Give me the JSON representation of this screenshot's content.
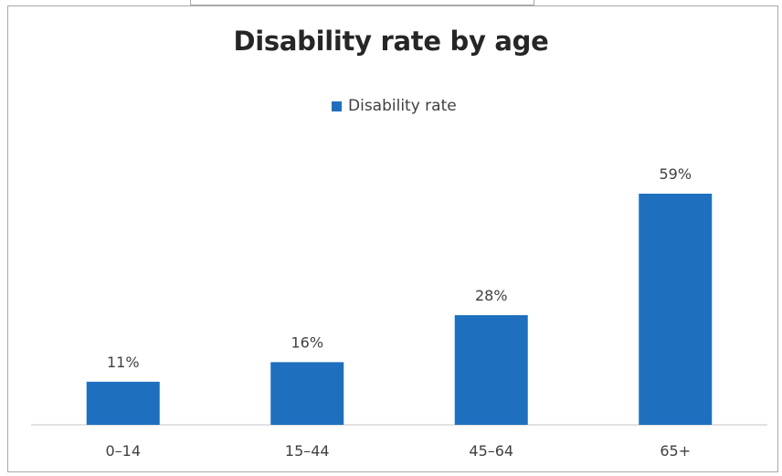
{
  "chart_data": {
    "type": "bar",
    "title": "Disability rate by age",
    "categories": [
      "0–14",
      "15–44",
      "45–64",
      "65+"
    ],
    "series": [
      {
        "name": "Disability rate",
        "values": [
          11,
          16,
          28,
          59
        ],
        "color": "#1f6fbf"
      }
    ],
    "data_labels": [
      "11%",
      "16%",
      "28%",
      "59%"
    ],
    "ylim": [
      0,
      60
    ],
    "grid": false,
    "legend_position": "top-center",
    "axis_color": "#d9d9d9"
  }
}
